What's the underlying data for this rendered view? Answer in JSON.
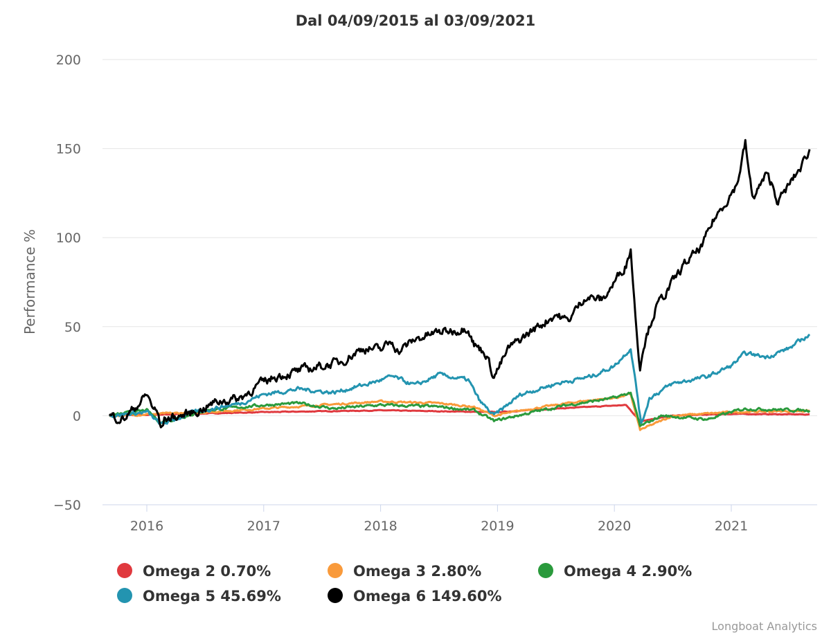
{
  "chart_data": {
    "type": "line",
    "title": "Dal 04/09/2015 al 03/09/2021",
    "ylabel": "Performance %",
    "xlabel": "",
    "ylim": [
      -50,
      200
    ],
    "yticks": [
      200,
      150,
      100,
      50,
      0,
      -50
    ],
    "ytick_labels": [
      "200",
      "150",
      "100",
      "50",
      "0",
      "−50"
    ],
    "xlim": [
      2015.68,
      2021.67
    ],
    "xticks": [
      2016,
      2017,
      2018,
      2019,
      2020,
      2021
    ],
    "xtick_labels": [
      "2016",
      "2017",
      "2018",
      "2019",
      "2020",
      "2021"
    ],
    "grid": true,
    "legend_position": "bottom-left",
    "credit": "Longboat Analytics",
    "series": [
      {
        "name": "Omega 2 0.70%",
        "color": "#e0393e",
        "points": [
          [
            2015.68,
            0
          ],
          [
            2016,
            0.5
          ],
          [
            2017,
            2
          ],
          [
            2018,
            3
          ],
          [
            2019,
            2
          ],
          [
            2019.5,
            4
          ],
          [
            2020.1,
            6
          ],
          [
            2020.22,
            -3
          ],
          [
            2020.5,
            0
          ],
          [
            2021,
            1
          ],
          [
            2021.67,
            0.7
          ]
        ]
      },
      {
        "name": "Omega 3 2.80%",
        "color": "#f99a3b",
        "points": [
          [
            2015.68,
            0
          ],
          [
            2016.5,
            2
          ],
          [
            2017,
            4
          ],
          [
            2017.5,
            6
          ],
          [
            2018,
            8
          ],
          [
            2018.5,
            7
          ],
          [
            2018.8,
            5
          ],
          [
            2018.97,
            0
          ],
          [
            2019.3,
            4
          ],
          [
            2019.7,
            8
          ],
          [
            2020,
            10
          ],
          [
            2020.14,
            12
          ],
          [
            2020.22,
            -8
          ],
          [
            2020.5,
            0
          ],
          [
            2021,
            2
          ],
          [
            2021.67,
            2.8
          ]
        ]
      },
      {
        "name": "Omega 4 2.90%",
        "color": "#2a9a3c",
        "points": [
          [
            2015.68,
            0
          ],
          [
            2016,
            3
          ],
          [
            2016.12,
            -4
          ],
          [
            2016.5,
            3
          ],
          [
            2017,
            6
          ],
          [
            2017.3,
            7
          ],
          [
            2017.6,
            4
          ],
          [
            2018,
            6
          ],
          [
            2018.5,
            5
          ],
          [
            2018.8,
            3
          ],
          [
            2018.97,
            -3
          ],
          [
            2019.3,
            2
          ],
          [
            2019.6,
            6
          ],
          [
            2020,
            10
          ],
          [
            2020.14,
            13
          ],
          [
            2020.22,
            -6
          ],
          [
            2020.4,
            0
          ],
          [
            2020.8,
            -2
          ],
          [
            2021,
            2
          ],
          [
            2021.12,
            4
          ],
          [
            2021.67,
            2.9
          ]
        ]
      },
      {
        "name": "Omega 5 45.69%",
        "color": "#2394b0",
        "points": [
          [
            2015.68,
            0
          ],
          [
            2016,
            2
          ],
          [
            2016.12,
            -5
          ],
          [
            2016.4,
            2
          ],
          [
            2016.8,
            7
          ],
          [
            2017,
            12
          ],
          [
            2017.3,
            15
          ],
          [
            2017.6,
            13
          ],
          [
            2017.9,
            18
          ],
          [
            2018.1,
            22
          ],
          [
            2018.3,
            17
          ],
          [
            2018.5,
            23
          ],
          [
            2018.75,
            20
          ],
          [
            2018.85,
            8
          ],
          [
            2018.97,
            0
          ],
          [
            2019.2,
            12
          ],
          [
            2019.5,
            18
          ],
          [
            2019.8,
            22
          ],
          [
            2020,
            28
          ],
          [
            2020.14,
            38
          ],
          [
            2020.2,
            10
          ],
          [
            2020.23,
            -5
          ],
          [
            2020.3,
            10
          ],
          [
            2020.5,
            18
          ],
          [
            2020.8,
            22
          ],
          [
            2021,
            28
          ],
          [
            2021.12,
            35
          ],
          [
            2021.3,
            33
          ],
          [
            2021.5,
            38
          ],
          [
            2021.67,
            45.69
          ]
        ]
      },
      {
        "name": "Omega 6 149.60%",
        "color": "#000000",
        "points": [
          [
            2015.68,
            0
          ],
          [
            2015.8,
            -2
          ],
          [
            2015.95,
            8
          ],
          [
            2016,
            12
          ],
          [
            2016.05,
            5
          ],
          [
            2016.1,
            0
          ],
          [
            2016.12,
            -8
          ],
          [
            2016.15,
            -2
          ],
          [
            2016.3,
            0
          ],
          [
            2016.45,
            3
          ],
          [
            2016.6,
            8
          ],
          [
            2016.8,
            10
          ],
          [
            2016.95,
            17
          ],
          [
            2017.1,
            22
          ],
          [
            2017.3,
            25
          ],
          [
            2017.5,
            28
          ],
          [
            2017.65,
            30
          ],
          [
            2017.85,
            38
          ],
          [
            2018,
            37
          ],
          [
            2018.1,
            42
          ],
          [
            2018.15,
            36
          ],
          [
            2018.3,
            43
          ],
          [
            2018.5,
            47
          ],
          [
            2018.65,
            48
          ],
          [
            2018.75,
            50
          ],
          [
            2018.8,
            40
          ],
          [
            2018.9,
            35
          ],
          [
            2018.97,
            22
          ],
          [
            2019.1,
            38
          ],
          [
            2019.3,
            48
          ],
          [
            2019.5,
            57
          ],
          [
            2019.6,
            53
          ],
          [
            2019.75,
            67
          ],
          [
            2019.9,
            65
          ],
          [
            2020,
            75
          ],
          [
            2020.1,
            85
          ],
          [
            2020.14,
            94
          ],
          [
            2020.17,
            65
          ],
          [
            2020.2,
            40
          ],
          [
            2020.22,
            28
          ],
          [
            2020.25,
            40
          ],
          [
            2020.35,
            60
          ],
          [
            2020.5,
            75
          ],
          [
            2020.6,
            85
          ],
          [
            2020.75,
            95
          ],
          [
            2020.85,
            110
          ],
          [
            2020.95,
            120
          ],
          [
            2021.05,
            130
          ],
          [
            2021.12,
            153
          ],
          [
            2021.18,
            122
          ],
          [
            2021.3,
            135
          ],
          [
            2021.35,
            130
          ],
          [
            2021.4,
            120
          ],
          [
            2021.5,
            130
          ],
          [
            2021.6,
            140
          ],
          [
            2021.67,
            149.6
          ]
        ]
      }
    ]
  }
}
